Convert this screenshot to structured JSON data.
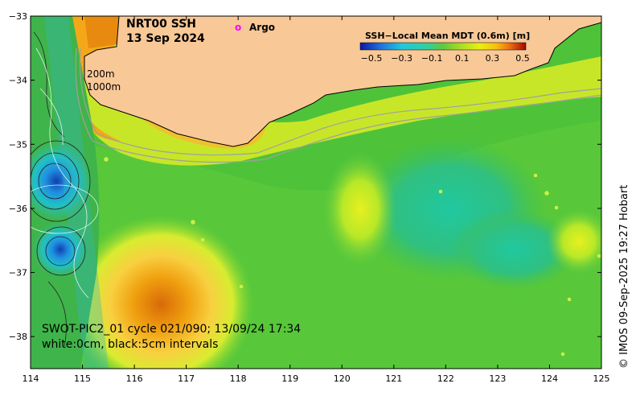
{
  "title": {
    "line1": "NRT00 SSH",
    "line2": "13 Sep 2024"
  },
  "argo_legend": {
    "marker": "o",
    "label": "Argo",
    "color": "#ff00ff"
  },
  "colorbar": {
    "title": "SSH−Local Mean MDT (0.6m) [m]",
    "tick_labels": [
      "−0.5",
      "−0.3",
      "−0.1",
      "0.1",
      "0.3",
      "0.5"
    ],
    "colors": [
      "#0a1aa0",
      "#1f6fe0",
      "#1fc7e0",
      "#2fd0a0",
      "#40c050",
      "#90e020",
      "#e8f010",
      "#f8c010",
      "#f07010",
      "#d02010",
      "#a00808"
    ]
  },
  "depth_labels": [
    "200m",
    "1000m"
  ],
  "swot_caption": {
    "line1": "SWOT-PIC2_01 cycle 021/090; 13/09/24 17:34",
    "line2": "white:0cm, black:5cm intervals"
  },
  "credit": "© IMOS 09-Sep-2025 19:27 Hobart",
  "axes": {
    "x_ticks": [
      "114",
      "115",
      "116",
      "117",
      "118",
      "119",
      "120",
      "121",
      "122",
      "123",
      "124",
      "125"
    ],
    "y_ticks": [
      "−33",
      "−34",
      "−35",
      "−36",
      "−37",
      "−38"
    ],
    "x_range": [
      114,
      125
    ],
    "y_range": [
      -38.5,
      -33
    ]
  },
  "colors": {
    "land": "#f9c897",
    "ocean_base": "#4ec33a"
  }
}
